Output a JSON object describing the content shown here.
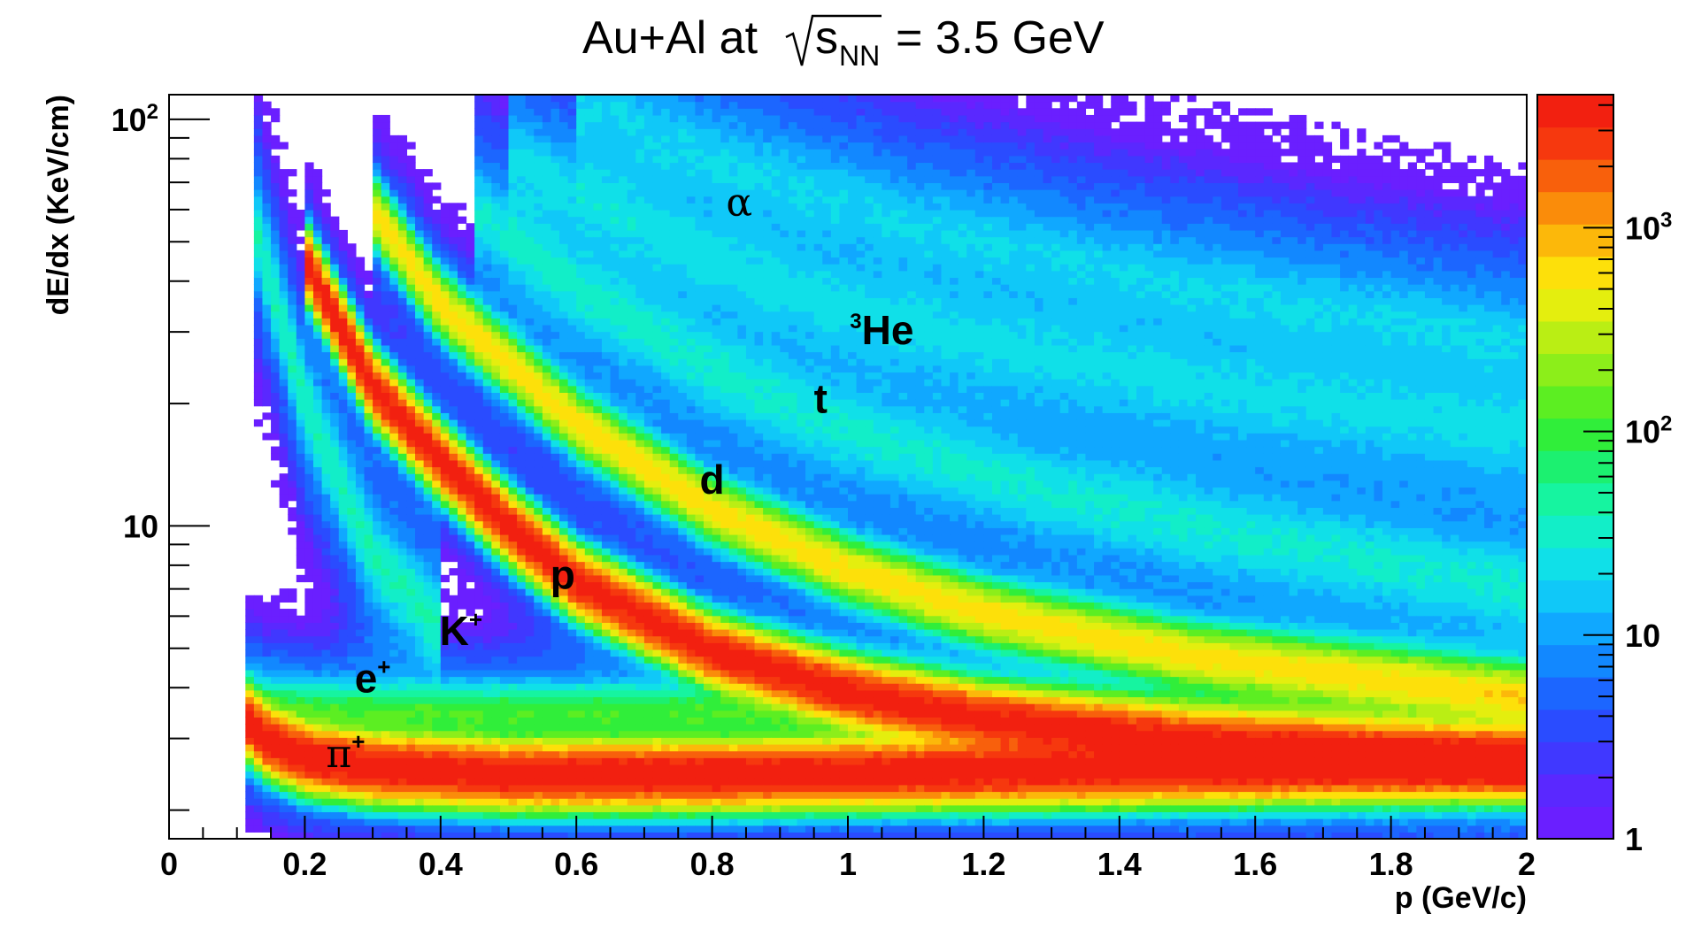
{
  "chart_data": {
    "type": "heatmap",
    "title": "Au+Al at √sNN = 3.5 GeV",
    "title_parts": {
      "prefix": "Au+Al at",
      "sqrt_s": "s",
      "sub": "NN",
      "suffix": "= 3.5 GeV"
    },
    "xlabel": "p (GeV/c)",
    "ylabel": "dE/dx (KeV/cm)",
    "xlim": [
      0,
      2
    ],
    "ylim": [
      1.7,
      115
    ],
    "yscale": "log",
    "grid": false,
    "x_ticks": [
      "0",
      "0.2",
      "0.4",
      "0.6",
      "0.8",
      "1",
      "1.2",
      "1.4",
      "1.6",
      "1.8",
      "2"
    ],
    "y_ticks": [
      {
        "value": 10,
        "base": "10",
        "exp": ""
      },
      {
        "value": 100,
        "base": "10",
        "exp": "2"
      }
    ],
    "colorbar": {
      "scale": "log",
      "range": [
        1,
        4500
      ],
      "labels": [
        {
          "value": 1,
          "base": "1",
          "exp": ""
        },
        {
          "value": 10,
          "base": "10",
          "exp": ""
        },
        {
          "value": 100,
          "base": "10",
          "exp": "2"
        },
        {
          "value": 1000,
          "base": "10",
          "exp": "3"
        }
      ],
      "colors": [
        "#6a1fff",
        "#5a28ff",
        "#4038ff",
        "#2a4cff",
        "#1c66ff",
        "#1288ff",
        "#10a8ff",
        "#10c8f8",
        "#10e0e8",
        "#12eec8",
        "#16f4a0",
        "#1cf070",
        "#30ee3a",
        "#5cee22",
        "#8cee1a",
        "#baee14",
        "#e4ee0e",
        "#fde00a",
        "#fcb80a",
        "#fa8c0a",
        "#f8600c",
        "#f6380e",
        "#f22010"
      ]
    },
    "bands": [
      {
        "name": "π",
        "charge": "+",
        "x": [
          0.11,
          0.14,
          0.2,
          0.3,
          0.5,
          0.8,
          1.2,
          1.6,
          2.0
        ],
        "y": [
          3.4,
          3.0,
          2.7,
          2.55,
          2.45,
          2.45,
          2.5,
          2.55,
          2.6
        ],
        "peak_counts": 4500
      },
      {
        "name": "e",
        "charge": "+",
        "x": [
          0.11,
          0.15,
          0.3,
          0.6,
          1.0,
          1.5,
          2.0
        ],
        "y": [
          3.6,
          3.5,
          3.45,
          3.45,
          3.45,
          3.45,
          3.45
        ],
        "peak_counts": 100
      },
      {
        "name": "K",
        "charge": "+",
        "x": [
          0.12,
          0.2,
          0.3,
          0.4
        ],
        "y": [
          60,
          20,
          8.5,
          5.6
        ],
        "peak_counts": 30
      },
      {
        "name": "p",
        "charge": "",
        "x": [
          0.2,
          0.3,
          0.4,
          0.5,
          0.6,
          0.8,
          1.0,
          1.2,
          1.5,
          2.0
        ],
        "y": [
          45,
          22,
          14.5,
          10,
          7.3,
          4.9,
          3.9,
          3.35,
          2.95,
          2.65
        ],
        "peak_counts": 4000
      },
      {
        "name": "d",
        "charge": "",
        "x": [
          0.3,
          0.4,
          0.6,
          0.8,
          1.0,
          1.2,
          1.5,
          2.0
        ],
        "y": [
          60,
          35,
          18,
          11,
          7.8,
          6.1,
          4.8,
          3.8
        ],
        "peak_counts": 600
      },
      {
        "name": "t",
        "charge": "",
        "x": [
          0.45,
          0.6,
          0.8,
          1.0,
          1.3,
          1.6,
          2.0
        ],
        "y": [
          60,
          38,
          24,
          17,
          12,
          9.2,
          7.0
        ],
        "peak_counts": 20
      },
      {
        "name": "He",
        "mass_number": "3",
        "x": [
          0.5,
          0.8,
          1.0,
          1.3,
          1.6,
          2.0
        ],
        "y": [
          80,
          45,
          34,
          26,
          21,
          17
        ],
        "peak_counts": 10
      },
      {
        "name": "α",
        "charge": "",
        "x": [
          0.6,
          0.8,
          1.1,
          1.4,
          1.7,
          2.0
        ],
        "y": [
          110,
          80,
          55,
          42,
          34,
          28
        ],
        "peak_counts": 8
      }
    ],
    "annotations": [
      {
        "text": "α",
        "sup": "",
        "pre": "",
        "x": 0.84,
        "y": 58
      },
      {
        "text": "He",
        "sup": "",
        "pre": "3",
        "x": 1.05,
        "y": 28
      },
      {
        "text": "t",
        "sup": "",
        "pre": "",
        "x": 0.96,
        "y": 19
      },
      {
        "text": "d",
        "sup": "",
        "pre": "",
        "x": 0.8,
        "y": 12
      },
      {
        "text": "p",
        "sup": "",
        "pre": "",
        "x": 0.58,
        "y": 7
      },
      {
        "text": "K",
        "sup": "+",
        "pre": "",
        "x": 0.43,
        "y": 5.1
      },
      {
        "text": "e",
        "sup": "+",
        "pre": "",
        "x": 0.3,
        "y": 3.9
      },
      {
        "text": "π",
        "sup": "+",
        "pre": "",
        "x": 0.26,
        "y": 2.55
      }
    ]
  }
}
